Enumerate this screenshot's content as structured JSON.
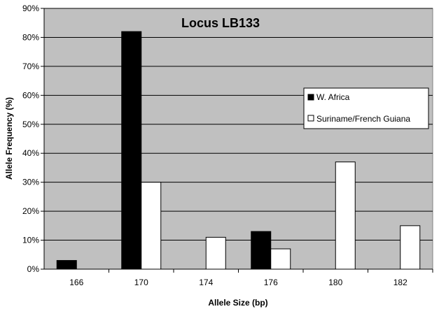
{
  "chart_data": {
    "type": "bar",
    "title": "Locus LB133",
    "xlabel": "Allele Size (bp)",
    "ylabel": "Allele Frequency (%)",
    "categories": [
      "166",
      "170",
      "174",
      "176",
      "180",
      "182"
    ],
    "series": [
      {
        "name": "W. Africa",
        "values": [
          3,
          82,
          0,
          13,
          0,
          0
        ],
        "color": "#000000"
      },
      {
        "name": "Suriname/French Guiana",
        "values": [
          0,
          30,
          11,
          7,
          37,
          15
        ],
        "color": "#ffffff"
      }
    ],
    "ylim": [
      0,
      90
    ],
    "yticks": [
      "0%",
      "10%",
      "20%",
      "30%",
      "40%",
      "50%",
      "60%",
      "70%",
      "80%",
      "90%"
    ],
    "grid": true,
    "plot_background": "#c0c0c0",
    "legend_position": "right"
  }
}
